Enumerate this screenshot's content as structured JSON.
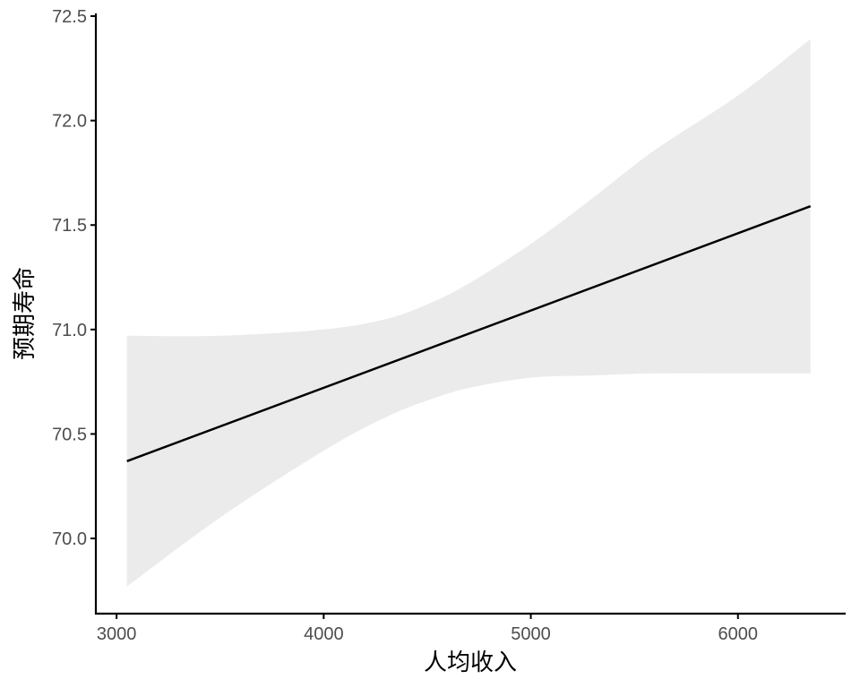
{
  "chart_data": {
    "type": "line",
    "xlabel": "人均收入",
    "ylabel": "预期寿命",
    "xlim": [
      2900,
      6520
    ],
    "ylim": [
      69.64,
      72.5
    ],
    "x_ticks": [
      3000,
      4000,
      5000,
      6000
    ],
    "x_tick_labels": [
      "3000",
      "4000",
      "5000",
      "6000"
    ],
    "y_ticks": [
      70.0,
      70.5,
      71.0,
      71.5,
      72.0,
      72.5
    ],
    "y_tick_labels": [
      "70.0",
      "70.5",
      "71.0",
      "71.5",
      "72.0",
      "72.5"
    ],
    "grid": false,
    "legend": "none",
    "series": [
      {
        "x": [
          3050,
          6350
        ],
        "values": [
          70.37,
          71.59
        ]
      }
    ],
    "confidence_band": {
      "x": [
        3050,
        3500,
        4000,
        4300,
        4500,
        4700,
        5000,
        5300,
        5600,
        6000,
        6350
      ],
      "lower": [
        69.77,
        70.1,
        70.42,
        70.58,
        70.66,
        70.72,
        70.77,
        70.78,
        70.79,
        70.79,
        70.79
      ],
      "upper": [
        70.97,
        70.97,
        71.0,
        71.05,
        71.12,
        71.22,
        71.41,
        71.63,
        71.86,
        72.12,
        72.39
      ]
    },
    "colors": {
      "line": "#000000",
      "band": "#ebebeb",
      "axis": "#000000",
      "tick_text": "#4d4d4d"
    }
  }
}
